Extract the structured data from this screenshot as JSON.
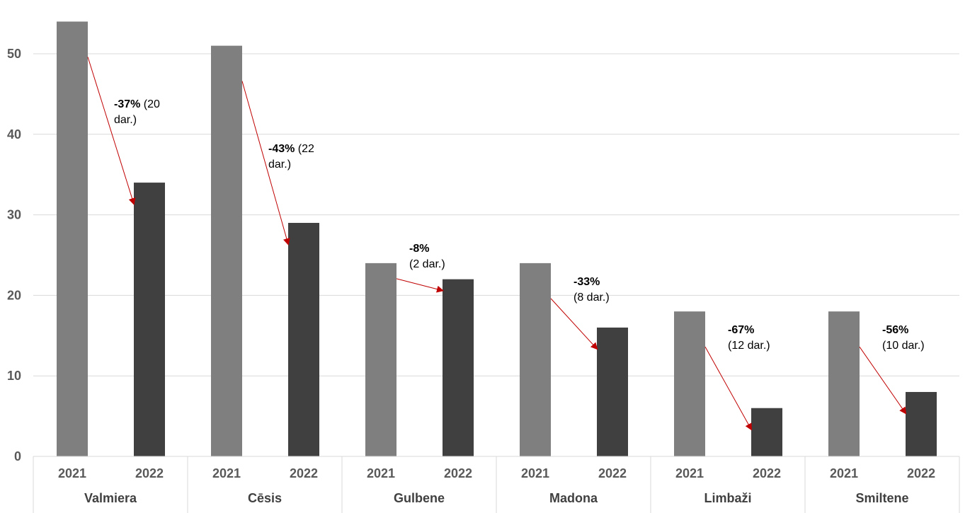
{
  "chart_data": {
    "type": "bar",
    "categories": [
      "Valmiera",
      "Cēsis",
      "Gulbene",
      "Madona",
      "Limbaži",
      "Smiltene"
    ],
    "years": [
      "2021",
      "2022"
    ],
    "series": [
      {
        "values": [
          54,
          51,
          24,
          24,
          18,
          18
        ],
        "color": "#7f7f7f"
      },
      {
        "values": [
          34,
          29,
          22,
          16,
          6,
          8
        ],
        "color": "#404040"
      }
    ],
    "annotations": [
      {
        "pct": "-37%",
        "detail": "(20",
        "detail2": "dar.)"
      },
      {
        "pct": "-43%",
        "detail": "(22",
        "detail2": "dar.)"
      },
      {
        "pct": "-8%",
        "detail": "",
        "detail2": "(2 dar.)"
      },
      {
        "pct": "-33%",
        "detail": "",
        "detail2": "(8 dar.)"
      },
      {
        "pct": "-67%",
        "detail": "",
        "detail2": "(12 dar.)"
      },
      {
        "pct": "-56%",
        "detail": "",
        "detail2": "(10 dar.)"
      }
    ],
    "ylim": [
      0,
      54
    ],
    "yticks": [
      0,
      10,
      20,
      30,
      40,
      50
    ],
    "grid": true,
    "arrow_color": "#c00000"
  }
}
